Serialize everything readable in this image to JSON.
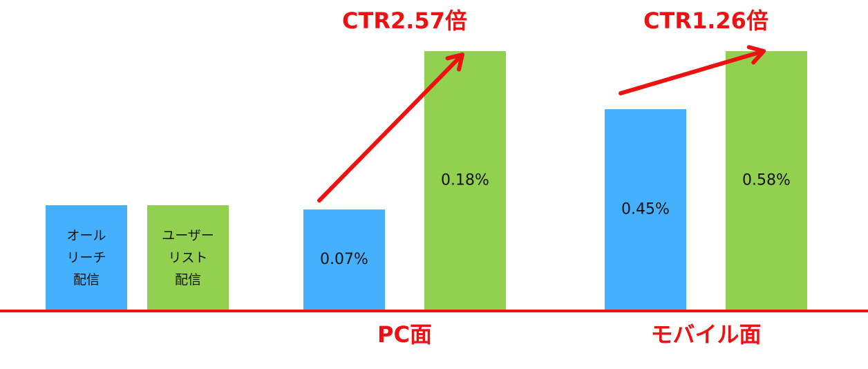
{
  "chart_data": {
    "type": "bar",
    "categories": [
      "PC面",
      "モバイル面"
    ],
    "annotations": [
      "CTR2.57倍",
      "CTR1.26倍"
    ],
    "series": [
      {
        "name": "オール\nリーチ\n配信",
        "color": "#45b0fe",
        "values": [
          0.07,
          0.45
        ],
        "value_labels": [
          "0.07%",
          "0.45%"
        ]
      },
      {
        "name": "ユーザー\nリスト\n配信",
        "color": "#92d050",
        "values": [
          0.18,
          0.58
        ],
        "value_labels": [
          "0.18%",
          "0.58%"
        ]
      }
    ],
    "ylims": [
      [
        0,
        0.18
      ],
      [
        0,
        0.58
      ]
    ],
    "accent_color": "#ee1111"
  }
}
